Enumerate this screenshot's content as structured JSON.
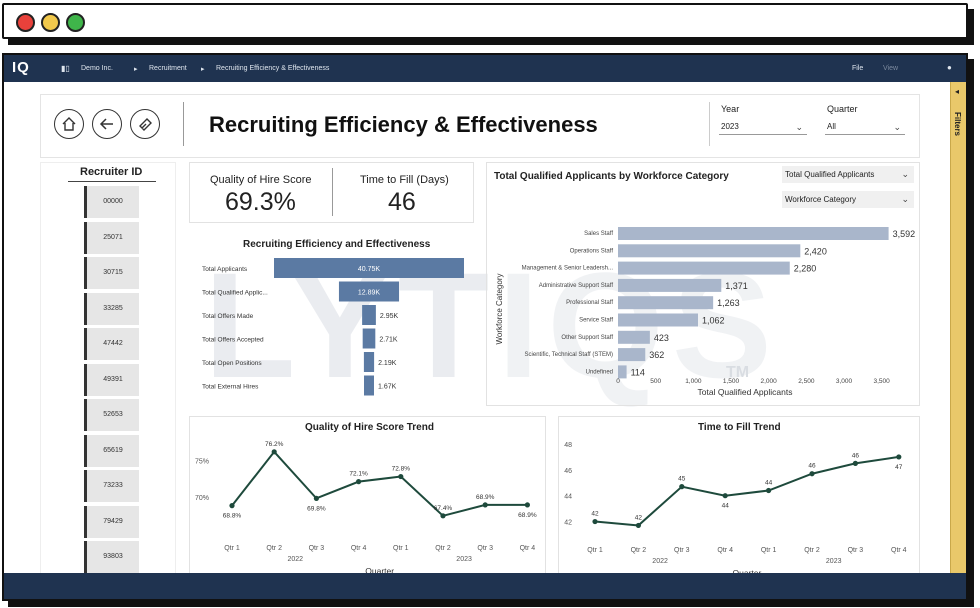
{
  "nav": {
    "breadcrumb": [
      "Demo Inc.",
      "Recruitment",
      "Recruiting Efficiency & Effectiveness"
    ],
    "file_label": "File",
    "view_label": "View"
  },
  "header": {
    "title": "Recruiting Efficiency & Effectiveness"
  },
  "filters": {
    "year_label": "Year",
    "year_value": "2023",
    "quarter_label": "Quarter",
    "quarter_value": "All",
    "pane_label": "Filters"
  },
  "recruiter": {
    "title": "Recruiter ID",
    "ids": [
      "00000",
      "25071",
      "30715",
      "33285",
      "47442",
      "49391",
      "52653",
      "65619",
      "73233",
      "79429",
      "93803"
    ]
  },
  "kpis": {
    "quality_label": "Quality of Hire Score",
    "quality_value": "69.3%",
    "ttf_label": "Time to Fill (Days)",
    "ttf_value": "46"
  },
  "funnel_panel": {
    "title": "Recruiting Efficiency and Effectiveness"
  },
  "applicants_panel": {
    "title": "Total Qualified Applicants by Workforce Category",
    "measure_select": "Total Qualified Applicants",
    "dimension_select": "Workforce Category"
  },
  "quality_panel": {
    "title": "Quality of Hire Score Trend"
  },
  "ttf_panel": {
    "title": "Time to Fill Trend"
  },
  "colors": {
    "navy": "#1f3350",
    "funnel_bar": "#5b7aa3",
    "category_bar": "#a9b6cb",
    "line": "#1e4a3c",
    "filters_pane": "#e9c86a"
  },
  "watermark": "LYTIQS",
  "chart_data": [
    {
      "type": "bar",
      "title": "Recruiting Efficiency and Effectiveness",
      "categories": [
        "Total Applicants",
        "Total Qualified Applic...",
        "Total Offers Made",
        "Total Offers Accepted",
        "Total Open Positions",
        "Total External Hires"
      ],
      "values": [
        40750,
        12890,
        2950,
        2710,
        2190,
        1670
      ],
      "labels": [
        "40.75K",
        "12.89K",
        "2.95K",
        "2.71K",
        "2.19K",
        "1.67K"
      ]
    },
    {
      "type": "bar",
      "title": "Total Qualified Applicants by Workforce Category",
      "categories": [
        "Sales Staff",
        "Operations Staff",
        "Management & Senior Leadersh...",
        "Administrative Support Staff",
        "Professional Staff",
        "Service Staff",
        "Other Support Staff",
        "Scientific, Technical Staff (STEM)",
        "Undefined"
      ],
      "values": [
        3592,
        2420,
        2280,
        1371,
        1263,
        1062,
        423,
        362,
        114
      ],
      "xlabel": "Total Qualified Applicants",
      "ylabel": "Workforce Category",
      "xlim": [
        0,
        3500
      ],
      "xticks": [
        "0",
        "500",
        "1,000",
        "1,500",
        "2,000",
        "2,500",
        "3,000",
        "3,500"
      ]
    },
    {
      "type": "line",
      "title": "Quality of Hire Score Trend",
      "x": [
        "Qtr 1",
        "Qtr 2",
        "Qtr 3",
        "Qtr 4",
        "Qtr 1",
        "Qtr 2",
        "Qtr 3",
        "Qtr 4"
      ],
      "years": [
        "2022",
        "2023"
      ],
      "values": [
        68.8,
        76.2,
        69.8,
        72.1,
        72.8,
        67.4,
        68.9,
        68.9
      ],
      "labels": [
        "68.8%",
        "76.2%",
        "69.8%",
        "72.1%",
        "72.8%",
        "67.4%",
        "68.9%",
        "68.9%"
      ],
      "xlabel": "Quarter",
      "yticks": [
        "75%",
        "70%"
      ],
      "ylim": [
        66,
        77
      ]
    },
    {
      "type": "line",
      "title": "Time to Fill Trend",
      "x": [
        "Qtr 1",
        "Qtr 2",
        "Qtr 3",
        "Qtr 4",
        "Qtr 1",
        "Qtr 2",
        "Qtr 3",
        "Qtr 4"
      ],
      "years": [
        "2022",
        "2023"
      ],
      "values": [
        42,
        41.7,
        44.7,
        44,
        44.4,
        45.7,
        46.5,
        47
      ],
      "labels": [
        "42",
        "42",
        "45",
        "44",
        "44",
        "46",
        "46",
        "47"
      ],
      "xlabel": "Quarter",
      "yticks": [
        "48",
        "46",
        "44",
        "42"
      ],
      "ylim": [
        41.5,
        48
      ]
    }
  ]
}
